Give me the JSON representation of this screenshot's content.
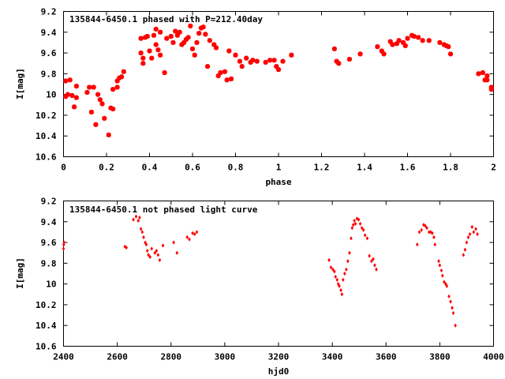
{
  "chart_data": [
    {
      "type": "scatter",
      "title": "135844-6450.1 phased with P=212.40day",
      "xlabel": "phase",
      "ylabel": "I[mag]",
      "xlim": [
        0,
        2
      ],
      "ylim": [
        10.6,
        9.2
      ],
      "y_inverted": true,
      "xticks": [
        "0",
        "0.2",
        "0.4",
        "0.6",
        "0.8",
        "1",
        "1.2",
        "1.4",
        "1.6",
        "1.8",
        "2"
      ],
      "yticks": [
        "9.2",
        "9.4",
        "9.6",
        "9.8",
        "10",
        "10.2",
        "10.4",
        "10.6"
      ],
      "marker": "filled-circle",
      "color": "#ff0000",
      "grid": false,
      "points": [
        [
          0.01,
          10.02
        ],
        [
          0.01,
          9.87
        ],
        [
          0.02,
          10.0
        ],
        [
          0.03,
          9.86
        ],
        [
          0.04,
          10.01
        ],
        [
          0.05,
          10.12
        ],
        [
          0.06,
          9.92
        ],
        [
          0.06,
          10.03
        ],
        [
          0.11,
          9.98
        ],
        [
          0.12,
          9.93
        ],
        [
          0.13,
          10.17
        ],
        [
          0.14,
          9.93
        ],
        [
          0.15,
          10.29
        ],
        [
          0.16,
          10.0
        ],
        [
          0.17,
          10.05
        ],
        [
          0.18,
          10.09
        ],
        [
          0.19,
          10.23
        ],
        [
          0.21,
          10.39
        ],
        [
          0.22,
          10.13
        ],
        [
          0.23,
          10.14
        ],
        [
          0.23,
          9.95
        ],
        [
          0.25,
          9.93
        ],
        [
          0.25,
          9.87
        ],
        [
          0.26,
          9.84
        ],
        [
          0.27,
          9.83
        ],
        [
          0.28,
          9.78
        ],
        [
          0.36,
          9.46
        ],
        [
          0.36,
          9.6
        ],
        [
          0.37,
          9.7
        ],
        [
          0.37,
          9.65
        ],
        [
          0.38,
          9.45
        ],
        [
          0.39,
          9.44
        ],
        [
          0.4,
          9.58
        ],
        [
          0.41,
          9.65
        ],
        [
          0.42,
          9.43
        ],
        [
          0.43,
          9.37
        ],
        [
          0.43,
          9.52
        ],
        [
          0.44,
          9.57
        ],
        [
          0.45,
          9.4
        ],
        [
          0.45,
          9.62
        ],
        [
          0.47,
          9.79
        ],
        [
          0.48,
          9.46
        ],
        [
          0.5,
          9.44
        ],
        [
          0.51,
          9.5
        ],
        [
          0.52,
          9.39
        ],
        [
          0.53,
          9.43
        ],
        [
          0.54,
          9.4
        ],
        [
          0.55,
          9.52
        ],
        [
          0.56,
          9.5
        ],
        [
          0.57,
          9.47
        ],
        [
          0.58,
          9.45
        ],
        [
          0.59,
          9.34
        ],
        [
          0.6,
          9.56
        ],
        [
          0.61,
          9.62
        ],
        [
          0.62,
          9.5
        ],
        [
          0.63,
          9.41
        ],
        [
          0.64,
          9.36
        ],
        [
          0.65,
          9.35
        ],
        [
          0.66,
          9.42
        ],
        [
          0.67,
          9.73
        ],
        [
          0.68,
          9.48
        ],
        [
          0.7,
          9.52
        ],
        [
          0.71,
          9.55
        ],
        [
          0.72,
          9.82
        ],
        [
          0.73,
          9.79
        ],
        [
          0.75,
          9.78
        ],
        [
          0.76,
          9.86
        ],
        [
          0.77,
          9.58
        ],
        [
          0.78,
          9.85
        ],
        [
          0.8,
          9.62
        ],
        [
          0.82,
          9.68
        ],
        [
          0.83,
          9.73
        ],
        [
          0.85,
          9.65
        ],
        [
          0.87,
          9.69
        ],
        [
          0.88,
          9.67
        ],
        [
          0.9,
          9.68
        ],
        [
          0.94,
          9.69
        ],
        [
          0.96,
          9.67
        ],
        [
          0.98,
          9.67
        ],
        [
          0.99,
          9.73
        ],
        [
          1.0,
          9.76
        ],
        [
          1.02,
          9.68
        ],
        [
          1.06,
          9.62
        ],
        [
          1.26,
          9.56
        ],
        [
          1.27,
          9.68
        ],
        [
          1.28,
          9.7
        ],
        [
          1.33,
          9.66
        ],
        [
          1.38,
          9.61
        ],
        [
          1.46,
          9.54
        ],
        [
          1.48,
          9.58
        ],
        [
          1.49,
          9.61
        ],
        [
          1.52,
          9.49
        ],
        [
          1.53,
          9.52
        ],
        [
          1.55,
          9.51
        ],
        [
          1.56,
          9.48
        ],
        [
          1.58,
          9.5
        ],
        [
          1.59,
          9.53
        ],
        [
          1.6,
          9.46
        ],
        [
          1.62,
          9.43
        ],
        [
          1.63,
          9.44
        ],
        [
          1.65,
          9.45
        ],
        [
          1.67,
          9.48
        ],
        [
          1.7,
          9.48
        ],
        [
          1.75,
          9.5
        ],
        [
          1.77,
          9.52
        ],
        [
          1.78,
          9.53
        ],
        [
          1.79,
          9.54
        ],
        [
          1.8,
          9.61
        ],
        [
          1.93,
          9.8
        ],
        [
          1.95,
          9.79
        ],
        [
          1.96,
          9.86
        ],
        [
          1.97,
          9.82
        ],
        [
          1.97,
          9.86
        ],
        [
          1.99,
          9.93
        ],
        [
          1.99,
          9.95
        ]
      ]
    },
    {
      "type": "scatter",
      "title": "135844-6450.1 not phased light curve",
      "xlabel": "hjd0",
      "ylabel": "I[mag]",
      "xlim": [
        2400,
        4000
      ],
      "ylim": [
        10.6,
        9.2
      ],
      "y_inverted": true,
      "xticks": [
        "2400",
        "2600",
        "2800",
        "3000",
        "3200",
        "3400",
        "3600",
        "3800",
        "4000"
      ],
      "yticks": [
        "9.2",
        "9.4",
        "9.6",
        "9.8",
        "10",
        "10.2",
        "10.4",
        "10.6"
      ],
      "marker": "filled-diamond",
      "color": "#ff0000",
      "grid": false,
      "points": [
        [
          2400,
          9.66
        ],
        [
          2401,
          9.62
        ],
        [
          2402,
          9.6
        ],
        [
          2628,
          9.64
        ],
        [
          2634,
          9.65
        ],
        [
          2660,
          9.38
        ],
        [
          2670,
          9.35
        ],
        [
          2678,
          9.39
        ],
        [
          2683,
          9.36
        ],
        [
          2688,
          9.47
        ],
        [
          2693,
          9.5
        ],
        [
          2698,
          9.55
        ],
        [
          2704,
          9.6
        ],
        [
          2708,
          9.62
        ],
        [
          2712,
          9.68
        ],
        [
          2716,
          9.72
        ],
        [
          2722,
          9.74
        ],
        [
          2728,
          9.66
        ],
        [
          2740,
          9.7
        ],
        [
          2746,
          9.68
        ],
        [
          2752,
          9.72
        ],
        [
          2758,
          9.77
        ],
        [
          2770,
          9.63
        ],
        [
          2810,
          9.6
        ],
        [
          2822,
          9.7
        ],
        [
          2860,
          9.55
        ],
        [
          2868,
          9.57
        ],
        [
          2880,
          9.51
        ],
        [
          2888,
          9.52
        ],
        [
          2896,
          9.5
        ],
        [
          3388,
          9.77
        ],
        [
          3395,
          9.84
        ],
        [
          3402,
          9.86
        ],
        [
          3408,
          9.88
        ],
        [
          3412,
          9.93
        ],
        [
          3418,
          9.96
        ],
        [
          3422,
          10.0
        ],
        [
          3426,
          10.02
        ],
        [
          3432,
          10.06
        ],
        [
          3436,
          10.1
        ],
        [
          3440,
          9.96
        ],
        [
          3446,
          9.9
        ],
        [
          3452,
          9.86
        ],
        [
          3458,
          9.78
        ],
        [
          3464,
          9.7
        ],
        [
          3470,
          9.56
        ],
        [
          3474,
          9.46
        ],
        [
          3478,
          9.43
        ],
        [
          3482,
          9.39
        ],
        [
          3486,
          9.42
        ],
        [
          3492,
          9.37
        ],
        [
          3498,
          9.38
        ],
        [
          3504,
          9.42
        ],
        [
          3510,
          9.46
        ],
        [
          3516,
          9.48
        ],
        [
          3522,
          9.53
        ],
        [
          3530,
          9.56
        ],
        [
          3538,
          9.73
        ],
        [
          3546,
          9.78
        ],
        [
          3552,
          9.76
        ],
        [
          3558,
          9.82
        ],
        [
          3564,
          9.86
        ],
        [
          3716,
          9.62
        ],
        [
          3724,
          9.5
        ],
        [
          3732,
          9.48
        ],
        [
          3740,
          9.43
        ],
        [
          3746,
          9.44
        ],
        [
          3752,
          9.46
        ],
        [
          3760,
          9.5
        ],
        [
          3766,
          9.5
        ],
        [
          3772,
          9.51
        ],
        [
          3778,
          9.55
        ],
        [
          3782,
          9.62
        ],
        [
          3796,
          9.78
        ],
        [
          3800,
          9.82
        ],
        [
          3806,
          9.87
        ],
        [
          3810,
          9.92
        ],
        [
          3816,
          9.98
        ],
        [
          3822,
          10.0
        ],
        [
          3826,
          10.02
        ],
        [
          3834,
          10.12
        ],
        [
          3840,
          10.17
        ],
        [
          3846,
          10.23
        ],
        [
          3850,
          10.28
        ],
        [
          3858,
          10.4
        ],
        [
          3888,
          9.72
        ],
        [
          3894,
          9.67
        ],
        [
          3900,
          9.6
        ],
        [
          3906,
          9.55
        ],
        [
          3912,
          9.52
        ],
        [
          3920,
          9.45
        ],
        [
          3926,
          9.5
        ],
        [
          3934,
          9.47
        ],
        [
          3940,
          9.52
        ]
      ]
    }
  ]
}
